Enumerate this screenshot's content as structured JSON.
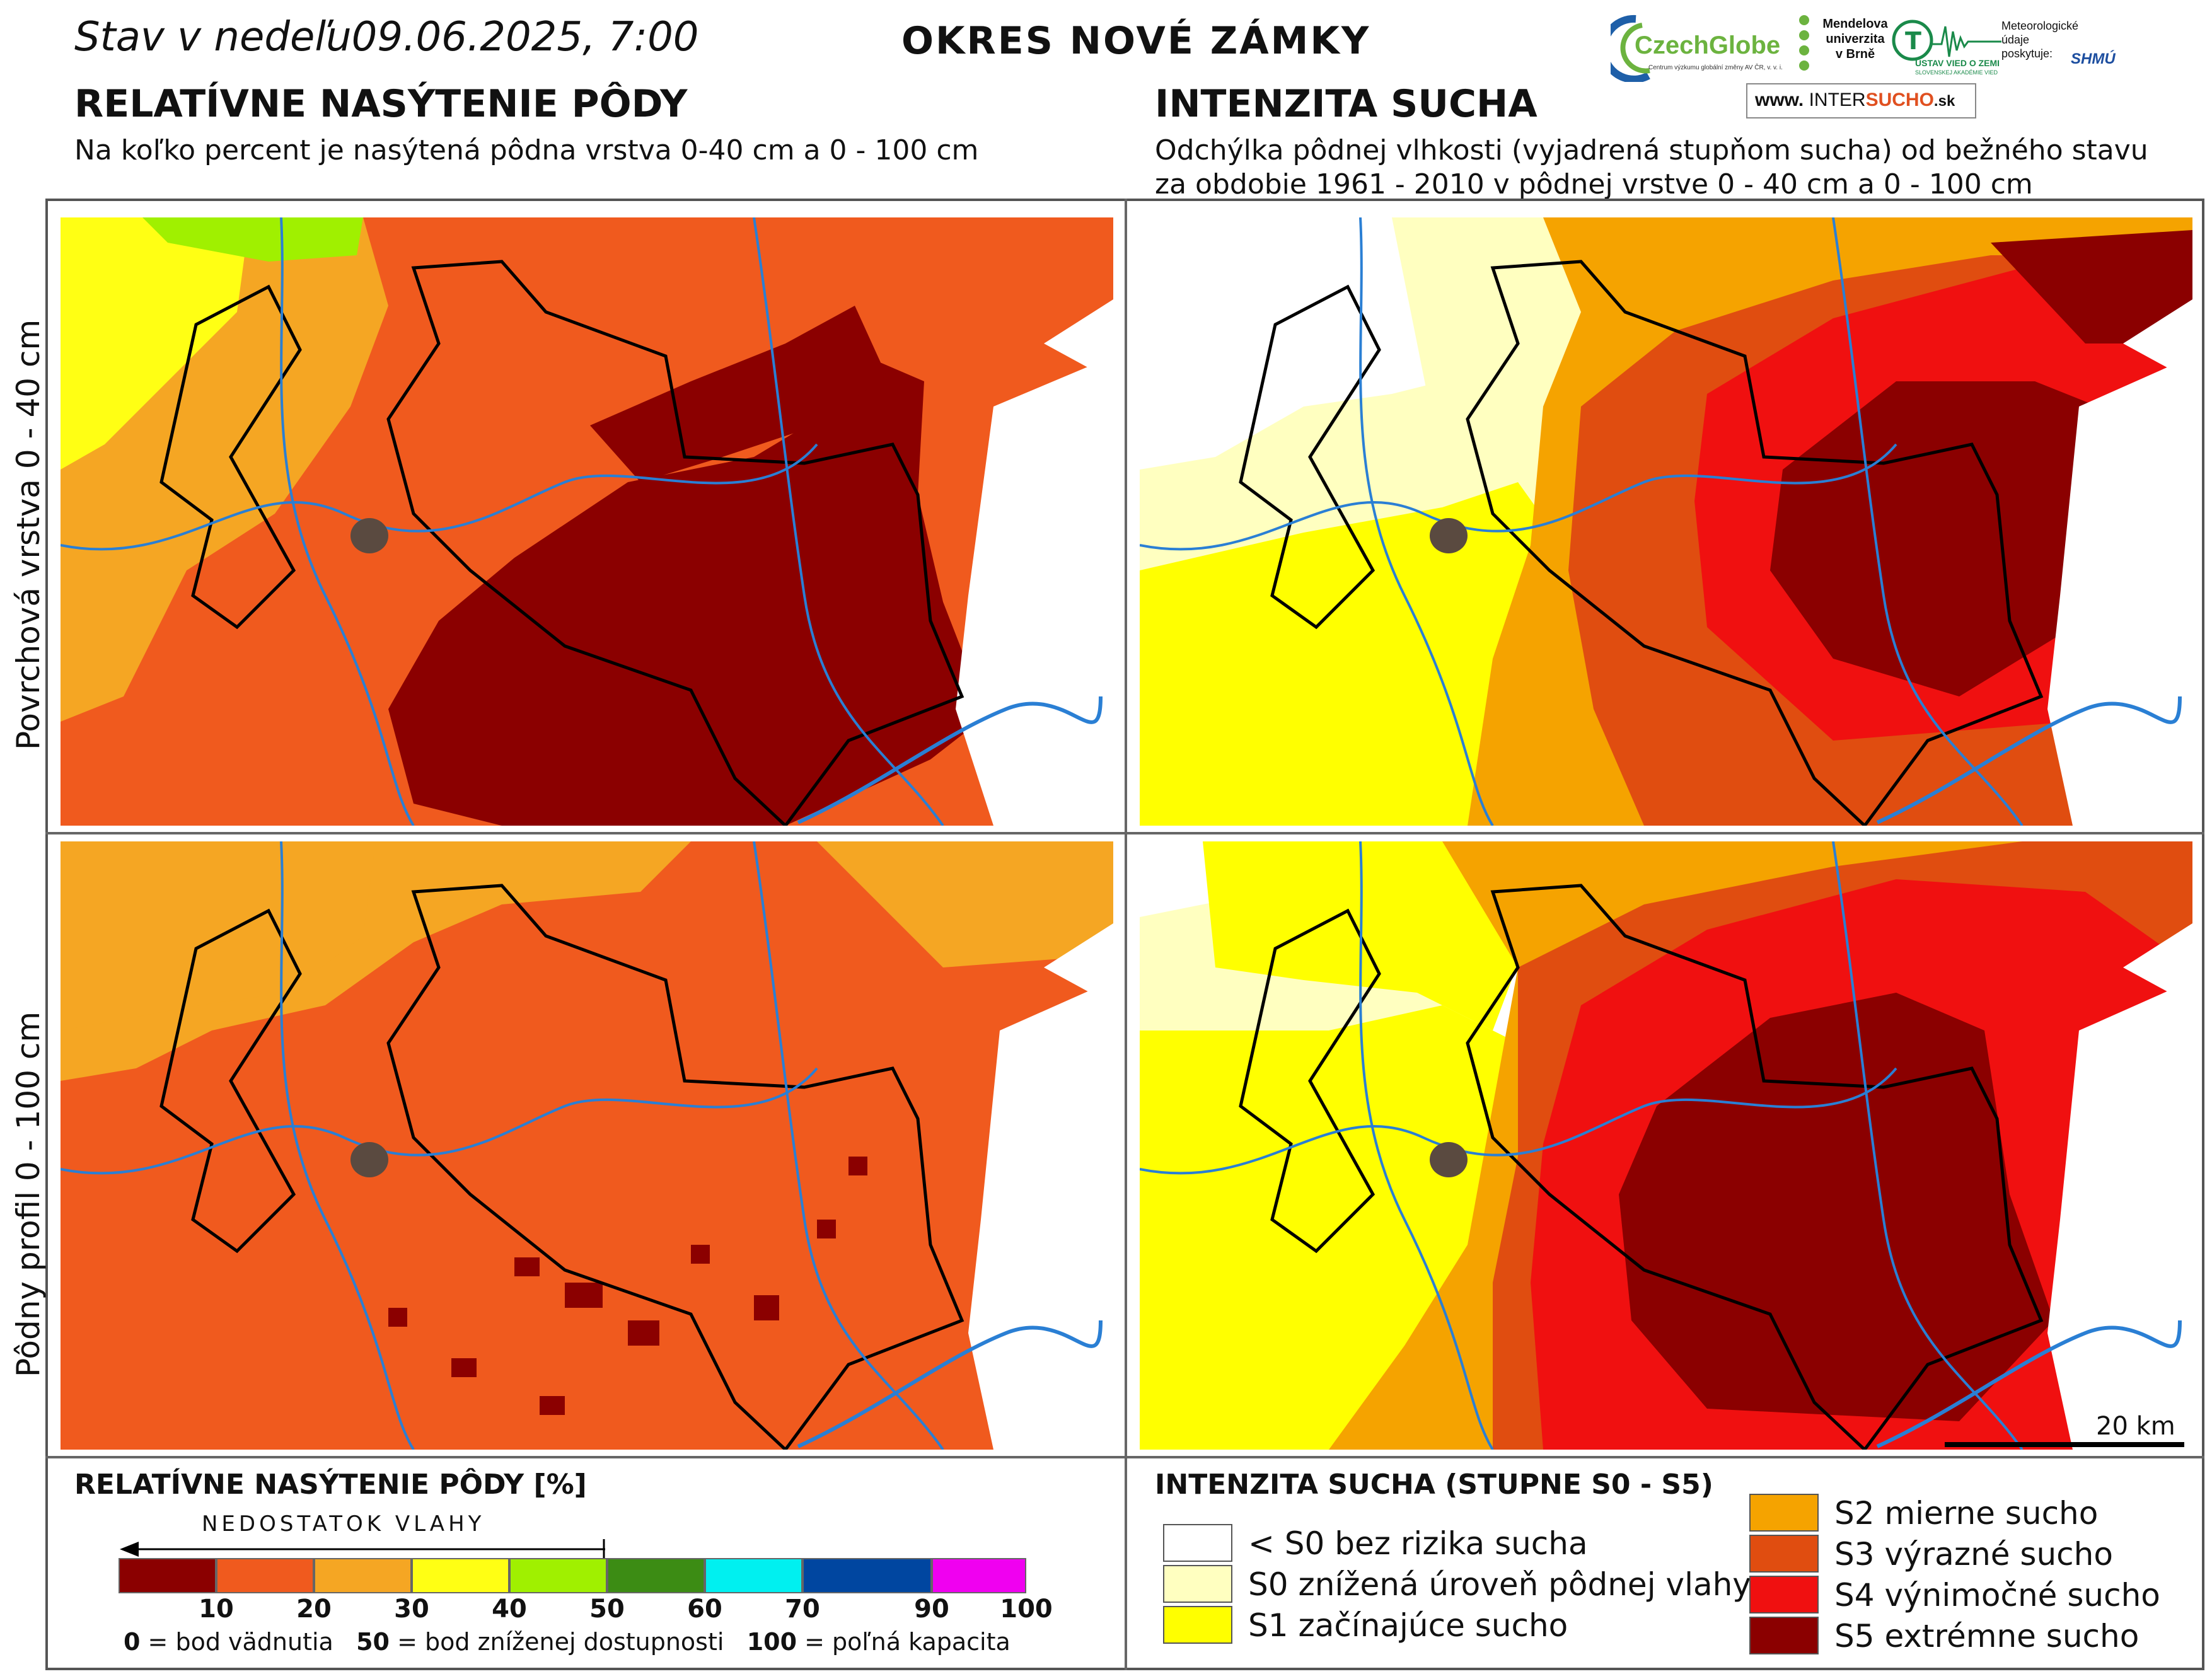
{
  "header": {
    "date_line": "Stav v nedeľu09.06.2025, 7:00",
    "district": "OKRES  NOVÉ ZÁMKY"
  },
  "logos": {
    "czechglobe": "CzechGlobe",
    "czechglobe_sub": "Centrum výzkumu globální změny AV ČR, v. v. i.",
    "mendel": "Mendelova univerzita v Brně",
    "ustav": "ÚSTAV VIED O ZEMI",
    "ustav_sub": "SLOVENSKEJ AKADÉMIE VIED",
    "meteo": "Meteorologické údaje poskytuje:",
    "shmu": "SHMÚ",
    "intersucho_prefix": "www.",
    "intersucho_a": "INTER",
    "intersucho_b": "SUCHO",
    "intersucho_suffix": ".sk"
  },
  "left_section": {
    "title": "RELATÍVNE NASÝTENIE PÔDY",
    "subtitle": "Na koľko percent je nasýtená pôdna vrstva 0-40 cm a 0 - 100 cm"
  },
  "right_section": {
    "title": "INTENZITA SUCHA",
    "subtitle_line1": "Odchýlka pôdnej vlhkosti (vyjadrená stupňom sucha) od bežného stavu",
    "subtitle_line2": "za obdobie 1961 - 2010 v pôdnej vrstve 0 - 40 cm a 0 - 100 cm"
  },
  "row_labels": {
    "top": "Povrchová vrstva 0 - 40 cm",
    "bottom": "Pôdny profil 0 - 100 cm"
  },
  "scale_bar": "20 km",
  "legend_left": {
    "title": "RELATÍVNE NASÝTENIE PÔDY [%]",
    "arrow_label": "NEDOSTATOK VLAHY",
    "colors": [
      "#8b0000",
      "#f05a1e",
      "#f5a623",
      "#ffff14",
      "#a0f000",
      "#3c8c14",
      "#00f0f0",
      "#0046a0",
      "#f000f0"
    ],
    "ticks": [
      "10",
      "20",
      "30",
      "40",
      "50",
      "60",
      "70",
      "90",
      "100"
    ],
    "note_a_num": "0",
    "note_a_text": "= bod vädnutia",
    "note_b_num": "50",
    "note_b_text": "= bod zníženej dostupnosti",
    "note_c_num": "100",
    "note_c_text": "= poľná kapacita"
  },
  "legend_right": {
    "title": "INTENZITA SUCHA (STUPNE S0 - S5)",
    "items": [
      {
        "color": "#ffffff",
        "label": "< S0 bez rizika sucha"
      },
      {
        "color": "#ffffc0",
        "label": "S0 znížená úroveň pôdnej vlahy"
      },
      {
        "color": "#ffff00",
        "label": "S1 začínajúce sucho"
      },
      {
        "color": "#f5a300",
        "label": "S2 mierne sucho"
      },
      {
        "color": "#e04d10",
        "label": "S3 výrazné sucho"
      },
      {
        "color": "#f01010",
        "label": "S4 výnimočné sucho"
      },
      {
        "color": "#8b0000",
        "label": "S5 extrémne sucho"
      }
    ]
  }
}
